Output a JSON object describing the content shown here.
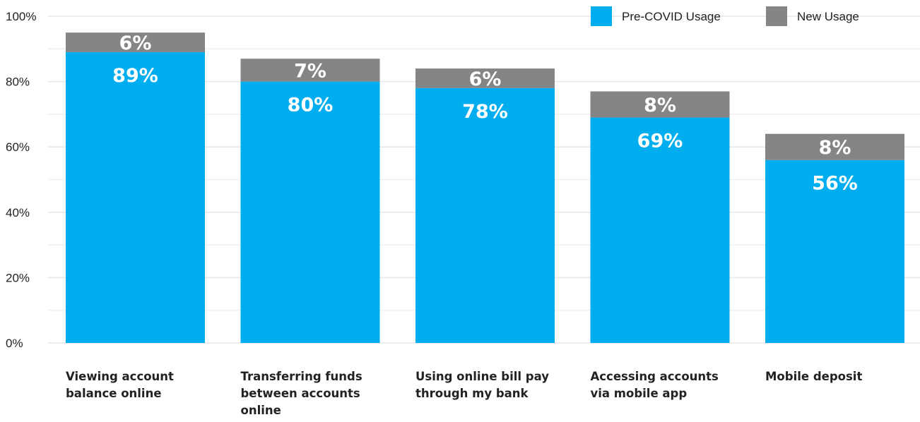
{
  "chart_data": {
    "type": "bar",
    "stacked": true,
    "categories": [
      "Viewing account balance online",
      "Transferring funds between accounts online",
      "Using online bill pay through my bank",
      "Accessing accounts via mobile app",
      "Mobile deposit"
    ],
    "series": [
      {
        "name": "Pre-COVID Usage",
        "color": "#00AEEF",
        "values": [
          89,
          80,
          78,
          69,
          56
        ],
        "labels": [
          "89%",
          "80%",
          "78%",
          "69%",
          "56%"
        ]
      },
      {
        "name": "New Usage",
        "color": "#858585",
        "values": [
          6,
          7,
          6,
          8,
          8
        ],
        "labels": [
          "6%",
          "7%",
          "6%",
          "8%",
          "8%"
        ]
      }
    ],
    "ylim": [
      0,
      100
    ],
    "yticks": [
      {
        "value": 0,
        "label": "0%"
      },
      {
        "value": 20,
        "label": "20%"
      },
      {
        "value": 40,
        "label": "40%"
      },
      {
        "value": 60,
        "label": "60%"
      },
      {
        "value": 80,
        "label": "80%"
      },
      {
        "value": 100,
        "label": "100%"
      }
    ],
    "grid": true,
    "legend_position": "top-right",
    "title": "",
    "xlabel": "",
    "ylabel": ""
  }
}
